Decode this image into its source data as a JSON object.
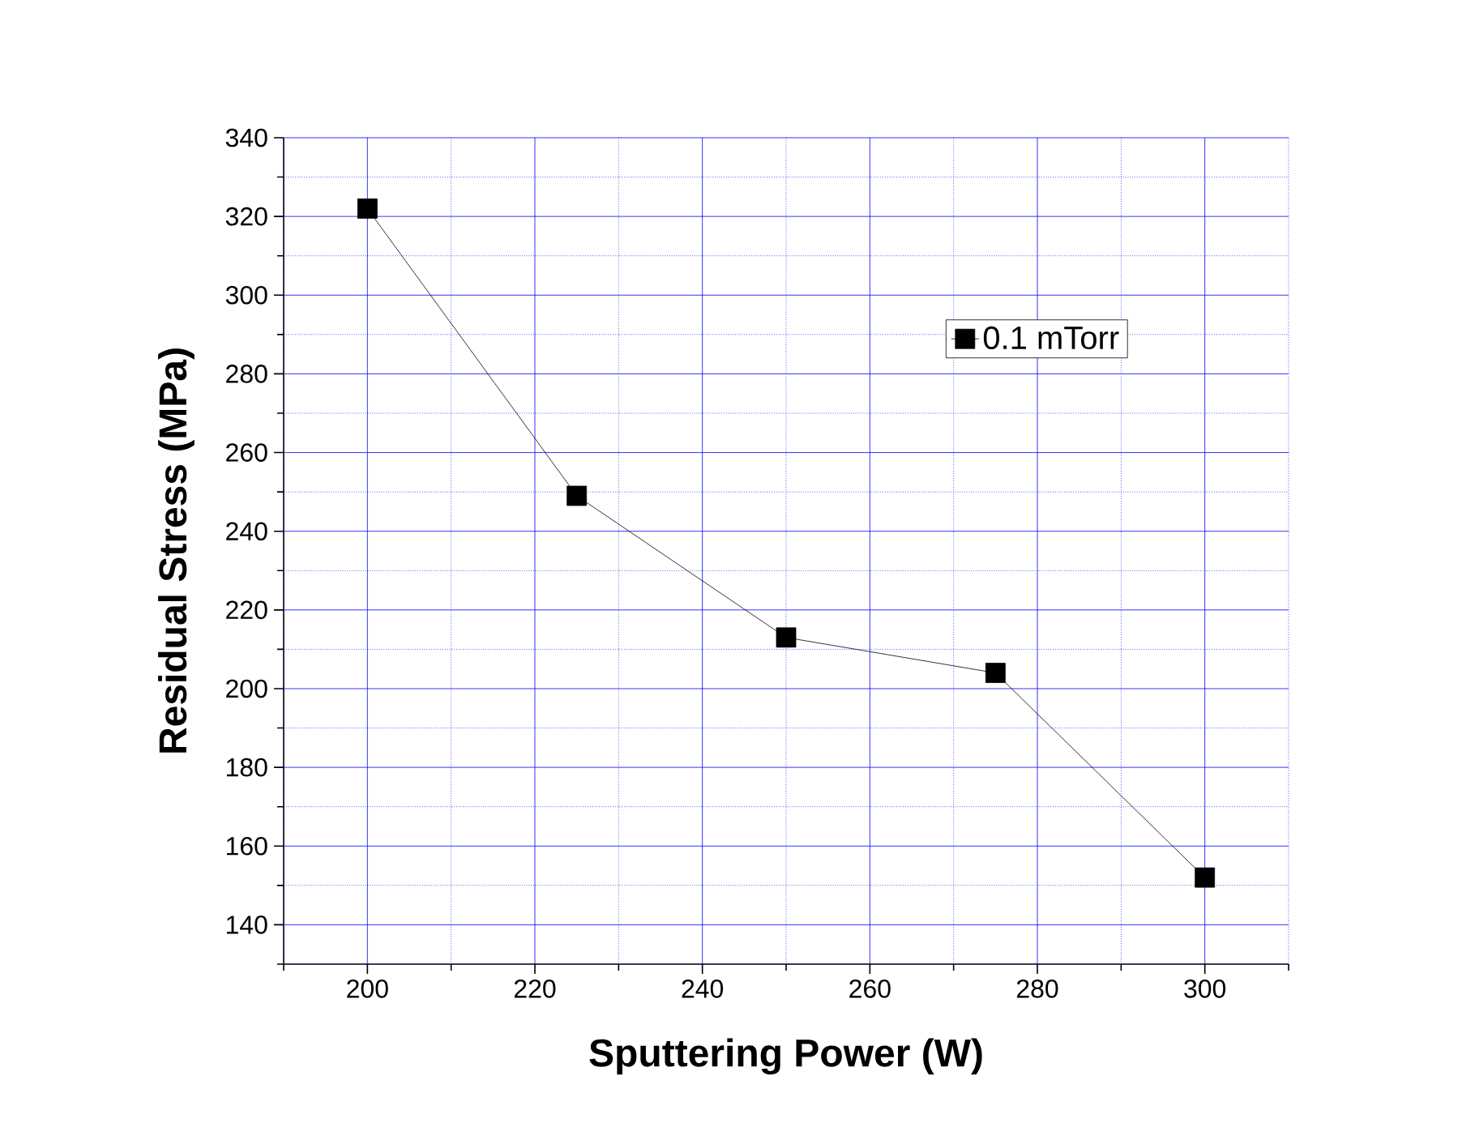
{
  "chart_data": {
    "type": "line",
    "xlabel": "Sputtering Power (W)",
    "ylabel": "Residual Stress (MPa)",
    "x": [
      200,
      225,
      250,
      275,
      300
    ],
    "series": [
      {
        "name": "0.1 mTorr",
        "color": "#000000",
        "values": [
          322,
          249,
          213,
          204,
          152
        ]
      }
    ],
    "xlim": [
      190,
      310
    ],
    "ylim": [
      130,
      340
    ],
    "xticks": [
      {
        "value": 190,
        "label": null
      },
      200,
      {
        "value": 210,
        "label": null
      },
      220,
      {
        "value": 230,
        "label": null
      },
      240,
      {
        "value": 250,
        "label": null
      },
      260,
      {
        "value": 270,
        "label": null
      },
      280,
      {
        "value": 290,
        "label": null
      },
      300,
      {
        "value": 310,
        "label": null
      }
    ],
    "yticks": [
      {
        "value": 130,
        "label": null
      },
      140,
      {
        "value": 150,
        "label": null
      },
      160,
      {
        "value": 170,
        "label": null
      },
      180,
      {
        "value": 190,
        "label": null
      },
      200,
      {
        "value": 210,
        "label": null
      },
      220,
      {
        "value": 230,
        "label": null
      },
      240,
      {
        "value": 250,
        "label": null
      },
      260,
      {
        "value": 270,
        "label": null
      },
      280,
      {
        "value": 290,
        "label": null
      },
      300,
      {
        "value": 310,
        "label": null
      },
      320,
      {
        "value": 330,
        "label": null
      },
      340
    ],
    "grid": true,
    "legend": "top right",
    "marker": "square",
    "line_style": "solid"
  }
}
